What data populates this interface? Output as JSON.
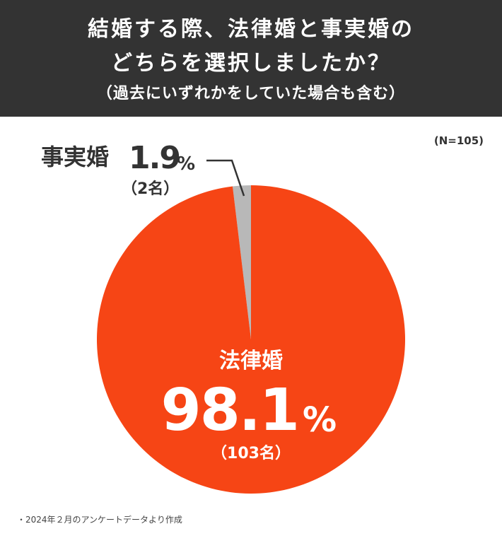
{
  "header": {
    "title_line1": "結婚する際、法律婚と事実婚の",
    "title_line2": "どちらを選択しましたか？",
    "subtitle": "（過去にいずれかをしていた場合も含む）"
  },
  "sample_size": "(N=105)",
  "footnote": "・2024年２月のアンケートデータより作成",
  "colors": {
    "header_bg": "#333333",
    "slice_legal": "#f64515",
    "slice_defacto": "#b8b8b8",
    "text_dark": "#333333"
  },
  "chart_data": {
    "type": "pie",
    "start_angle_deg": -90,
    "direction": "counterclockwise",
    "slices": [
      {
        "label": "事実婚",
        "percent_number": "1.9",
        "percent_sign": "%",
        "count_label": "（2名）",
        "value": 2,
        "color": "#b8b8b8"
      },
      {
        "label": "法律婚",
        "percent_number": "98.1",
        "percent_sign": "%",
        "count_label": "（103名）",
        "value": 103,
        "color": "#f64515"
      }
    ]
  }
}
